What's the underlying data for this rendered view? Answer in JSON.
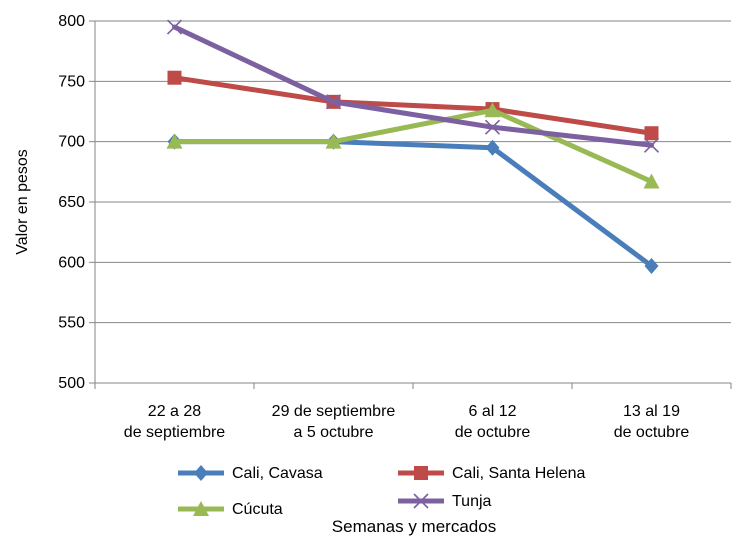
{
  "chart_data": {
    "type": "line",
    "title": "",
    "xlabel": "Semanas y mercados",
    "ylabel": "Valor en pesos",
    "ylim": [
      500,
      800
    ],
    "yticks": [
      500,
      550,
      600,
      650,
      700,
      750,
      800
    ],
    "grid": true,
    "legend_position": "bottom",
    "categories": [
      [
        "22 a 28",
        "de septiembre"
      ],
      [
        "29 de septiembre",
        "a 5 octubre"
      ],
      [
        "6 al 12",
        "de octubre"
      ],
      [
        "13 al 19",
        "de octubre"
      ]
    ],
    "series": [
      {
        "name": "Cali, Cavasa",
        "color": "#4a7ebb",
        "marker": "diamond",
        "values": [
          700,
          700,
          695,
          597
        ]
      },
      {
        "name": "Cali, Santa Helena",
        "color": "#be4b48",
        "marker": "square",
        "values": [
          753,
          733,
          727,
          707
        ]
      },
      {
        "name": "Cúcuta",
        "color": "#98b954",
        "marker": "triangle",
        "values": [
          700,
          700,
          726,
          667
        ]
      },
      {
        "name": "Tunja",
        "color": "#7d60a0",
        "marker": "x",
        "values": [
          795,
          733,
          712,
          697
        ]
      }
    ]
  }
}
